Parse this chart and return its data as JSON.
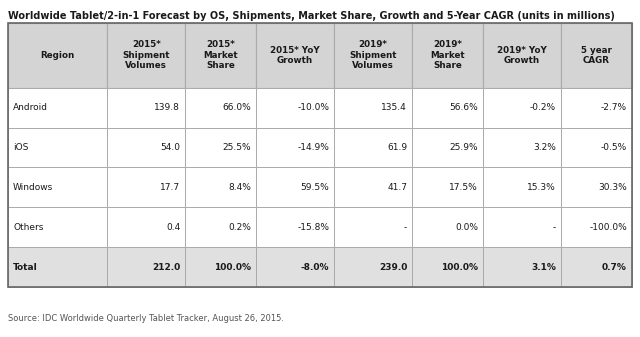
{
  "title": "Worldwide Tablet/2-in-1 Forecast by OS, Shipments, Market Share, Growth and 5-Year CAGR (units in millions)",
  "source": "Source: IDC Worldwide Quarterly Tablet Tracker, August 26, 2015.",
  "col_headers": [
    "Region",
    "2015*\nShipment\nVolumes",
    "2015*\nMarket\nShare",
    "2015* YoY\nGrowth",
    "2019*\nShipment\nVolumes",
    "2019*\nMarket\nShare",
    "2019* YoY\nGrowth",
    "5 year\nCAGR"
  ],
  "rows": [
    [
      "Android",
      "139.8",
      "66.0%",
      "-10.0%",
      "135.4",
      "56.6%",
      "-0.2%",
      "-2.7%"
    ],
    [
      "iOS",
      "54.0",
      "25.5%",
      "-14.9%",
      "61.9",
      "25.9%",
      "3.2%",
      "-0.5%"
    ],
    [
      "Windows",
      "17.7",
      "8.4%",
      "59.5%",
      "41.7",
      "17.5%",
      "15.3%",
      "30.3%"
    ],
    [
      "Others",
      "0.4",
      "0.2%",
      "-15.8%",
      "-",
      "0.0%",
      "-",
      "-100.0%"
    ],
    [
      "Total",
      "212.0",
      "100.0%",
      "-8.0%",
      "239.0",
      "100.0%",
      "3.1%",
      "0.7%"
    ]
  ],
  "col_alignments": [
    "left",
    "right",
    "right",
    "right",
    "right",
    "right",
    "right",
    "right"
  ],
  "col_widths_rel": [
    1.4,
    1.1,
    1.0,
    1.1,
    1.1,
    1.0,
    1.1,
    1.0
  ],
  "header_bg": "#d4d4d4",
  "total_row_bg": "#e0e0e0",
  "row_bg": "#ffffff",
  "grid_color": "#aaaaaa",
  "text_color": "#1a1a1a",
  "title_color": "#1a1a1a",
  "source_color": "#555555",
  "background_color": "#ffffff",
  "title_fontsize": 7.0,
  "header_fontsize": 6.3,
  "cell_fontsize": 6.5,
  "source_fontsize": 6.0
}
